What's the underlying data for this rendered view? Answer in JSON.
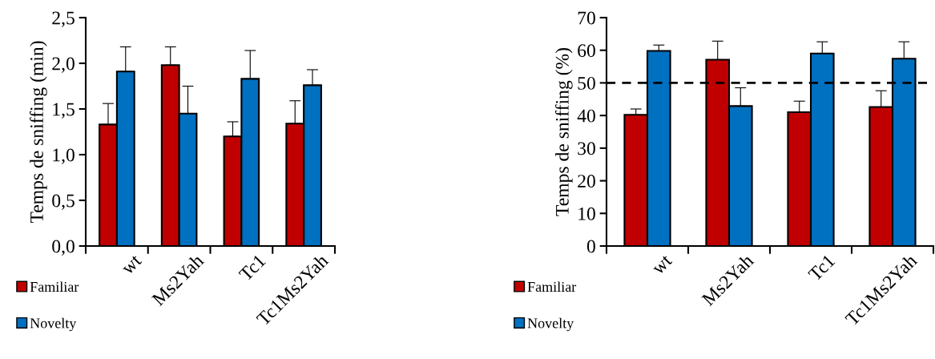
{
  "chart_data": [
    {
      "type": "bar",
      "ylabel": "Temps de sniffing (min)",
      "categories": [
        "wt",
        "Ms2Yah",
        "Tc1",
        "Tc1Ms2Yah"
      ],
      "series": [
        {
          "name": "Familiar",
          "color": "#c00000",
          "values": [
            1.33,
            1.98,
            1.2,
            1.34
          ],
          "errors": [
            [
              1.33,
              1.56
            ],
            [
              1.98,
              2.18
            ],
            [
              1.2,
              1.36
            ],
            [
              1.34,
              1.59
            ]
          ]
        },
        {
          "name": "Novelty",
          "color": "#0070c0",
          "values": [
            1.91,
            1.45,
            1.83,
            1.76
          ],
          "errors": [
            [
              1.91,
              2.18
            ],
            [
              1.45,
              1.75
            ],
            [
              1.83,
              2.14
            ],
            [
              1.76,
              1.93
            ]
          ]
        }
      ],
      "ylim": [
        0,
        2.5
      ],
      "yticks": [
        {
          "value": 0,
          "label": "0,0"
        },
        {
          "value": 0.5,
          "label": "0,5"
        },
        {
          "value": 1,
          "label": "1,0"
        },
        {
          "value": 1.5,
          "label": "1,5"
        },
        {
          "value": 2,
          "label": "2,0"
        },
        {
          "value": 2.5,
          "label": "2,5"
        }
      ],
      "grid": false,
      "legend": "bottom left"
    },
    {
      "type": "bar",
      "ylabel": "Temps de sniffing (%)",
      "categories": [
        "wt",
        "Ms2Yah",
        "Tc1",
        "Tc1Ms2Yah"
      ],
      "series": [
        {
          "name": "Familiar",
          "color": "#c00000",
          "values": [
            40.2,
            57.1,
            41,
            42.6
          ],
          "errors": [
            [
              40.2,
              42
            ],
            [
              57.1,
              62.8
            ],
            [
              41,
              44.4
            ],
            [
              42.6,
              47.6
            ]
          ]
        },
        {
          "name": "Novelty",
          "color": "#0070c0",
          "values": [
            59.8,
            42.9,
            59,
            57.4
          ],
          "errors": [
            [
              59.8,
              61.6
            ],
            [
              42.9,
              48.5
            ],
            [
              59,
              62.6
            ],
            [
              57.4,
              62.6
            ]
          ]
        }
      ],
      "ylim": [
        0,
        70
      ],
      "yticks": [
        0,
        10,
        20,
        30,
        40,
        50,
        60,
        70
      ],
      "ref_lines": [
        {
          "axis": "y",
          "value": 50,
          "color": "#000000",
          "line_style": "dashed"
        }
      ],
      "grid": false,
      "legend": "bottom left"
    }
  ]
}
